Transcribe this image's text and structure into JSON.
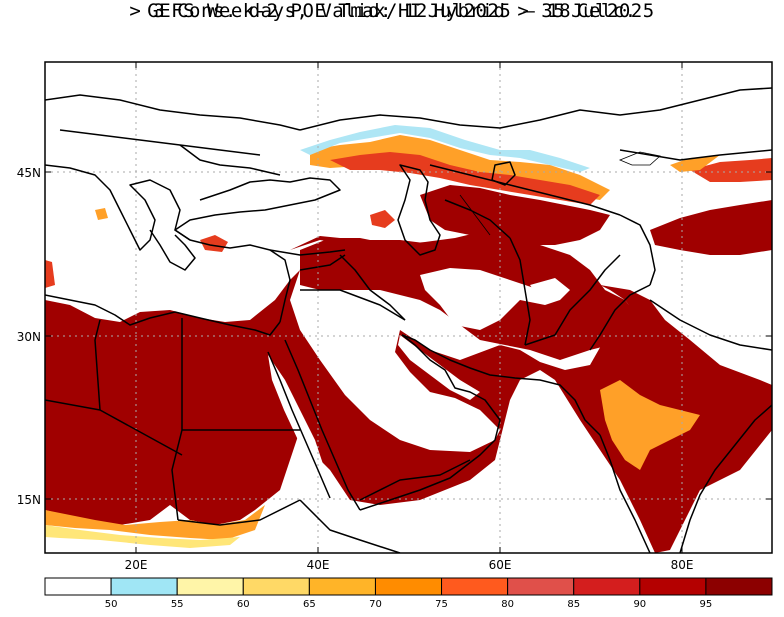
{
  "title": {
    "line1": "GEFS Week-2 POE Tmax/HI Hybrid > 35 Celc.",
    "line2": "> 3 Cons. days, Valid: 12Jul2025 – 18Jul2025"
  },
  "axes": {
    "lat_labels": [
      "45N",
      "30N",
      "15N"
    ],
    "lon_labels": [
      "20E",
      "40E",
      "60E",
      "80E"
    ]
  },
  "colorbar": {
    "ticks": [
      "50",
      "55",
      "60",
      "65",
      "70",
      "75",
      "80",
      "85",
      "90",
      "95"
    ],
    "colors": [
      "#ffffff",
      "#a0e6f5",
      "#fff5a8",
      "#ffd966",
      "#ffb428",
      "#ff8c00",
      "#ff5a1e",
      "#e0504a",
      "#d41e1e",
      "#b40000",
      "#8c0000"
    ]
  },
  "map_palette": {
    "land": "#ffffff",
    "high": "#a00000",
    "mid": "#e63c1e",
    "orange": "#ffa028",
    "yellow": "#ffe678",
    "cyan": "#aee6f5",
    "border": "#000000"
  }
}
